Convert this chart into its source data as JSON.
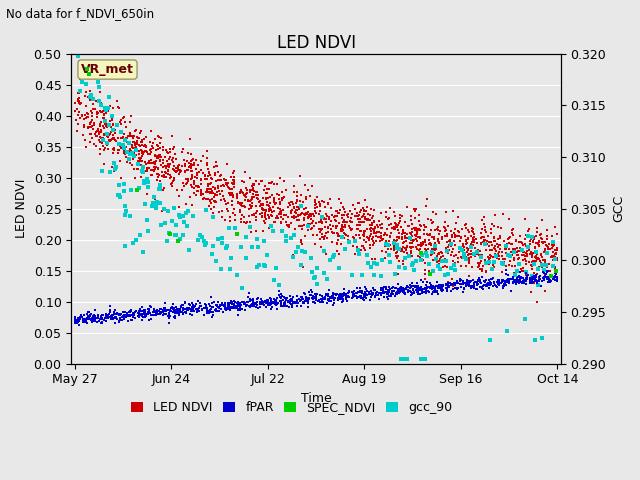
{
  "title": "LED NDVI",
  "subtitle": "No data for f_NDVI_650in",
  "ylabel_left": "LED NDVI",
  "ylabel_right": "GCC",
  "xlabel": "Time",
  "ylim_left": [
    0.0,
    0.5
  ],
  "ylim_right": [
    0.29,
    0.32
  ],
  "bg_color": "#e8e8e8",
  "plot_bg_color": "#e8e8e8",
  "grid_color": "white",
  "legend_labels": [
    "LED NDVI",
    "fPAR",
    "SPEC_NDVI",
    "gcc_90"
  ],
  "legend_colors": [
    "#cc0000",
    "#0000cc",
    "#00cc00",
    "#00cccc"
  ],
  "vr_met_label": "VR_met",
  "xtick_labels": [
    "May 27",
    "Jun 24",
    "Jul 22",
    "Aug 19",
    "Sep 16",
    "Oct 14"
  ],
  "tick_positions": [
    0,
    28,
    56,
    84,
    112,
    140
  ],
  "ytick_left": [
    0.0,
    0.05,
    0.1,
    0.15,
    0.2,
    0.25,
    0.3,
    0.35,
    0.4,
    0.45,
    0.5
  ],
  "ytick_right": [
    0.29,
    0.295,
    0.3,
    0.305,
    0.31,
    0.315,
    0.32
  ],
  "total_days": 140
}
